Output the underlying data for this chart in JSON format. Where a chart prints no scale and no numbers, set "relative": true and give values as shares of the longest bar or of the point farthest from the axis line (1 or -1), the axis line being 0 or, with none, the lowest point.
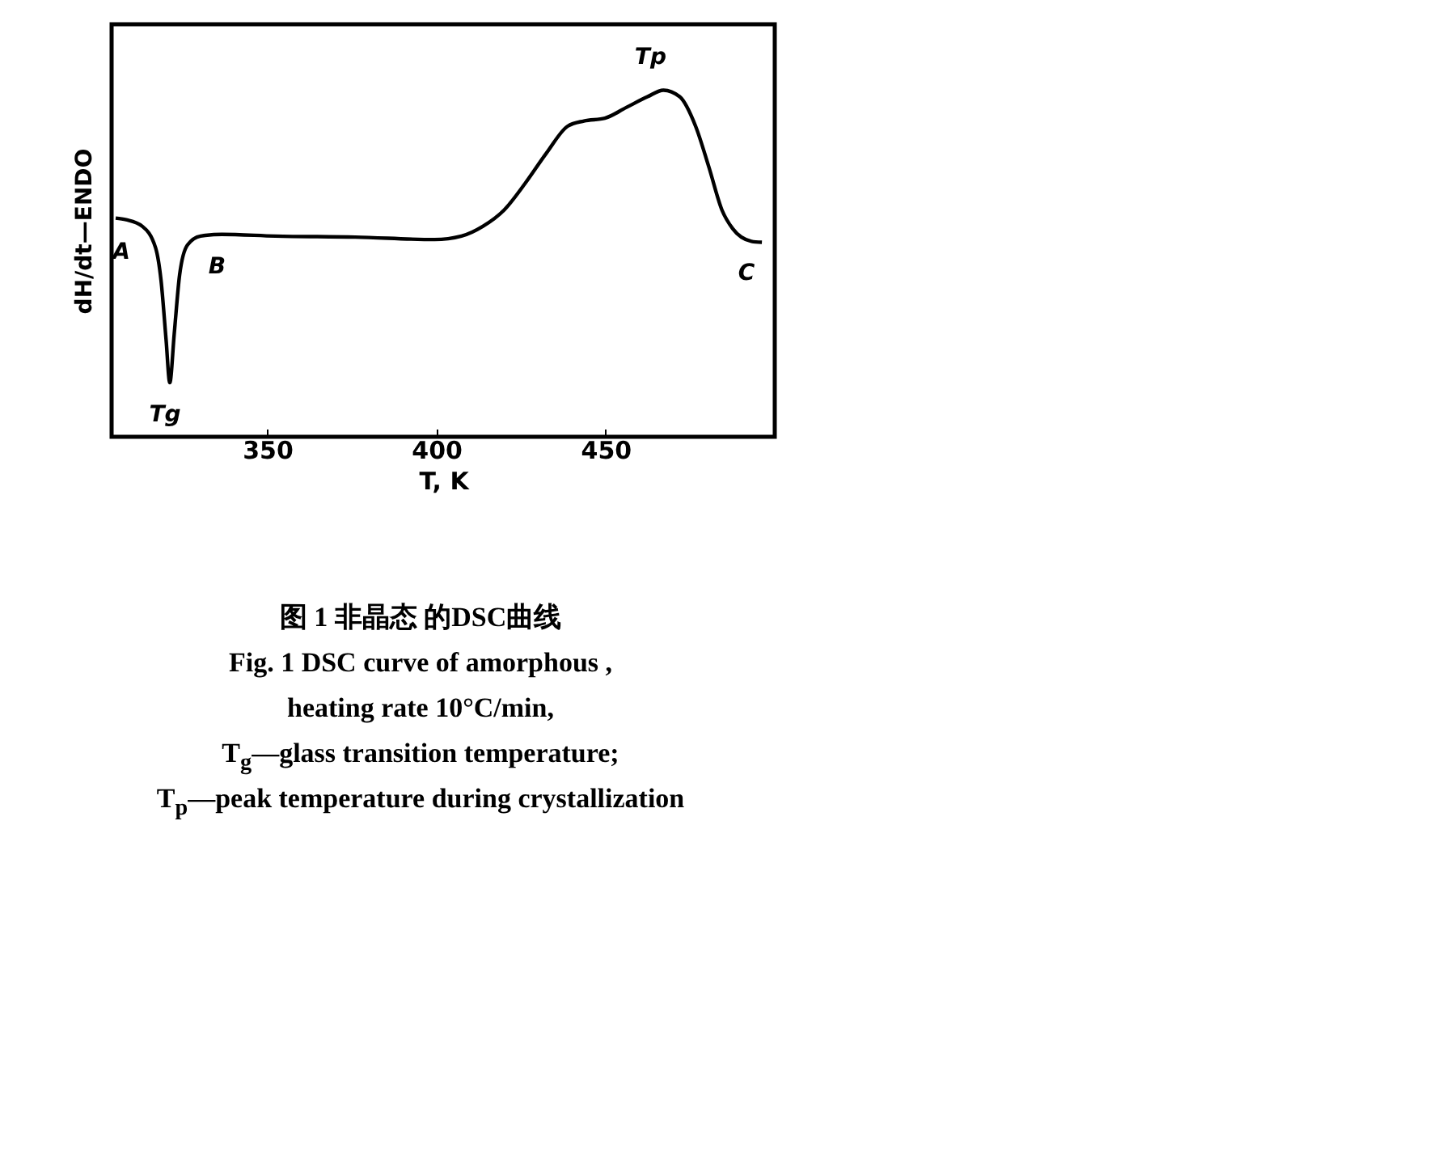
{
  "chart_data": {
    "type": "line",
    "title": "图 1  非晶态  的DSC曲线",
    "subtitle": "Fig. 1  DSC curve of amorphous ,",
    "xlabel": "T, K",
    "ylabel": "dH/dt—ENDO",
    "relative": true,
    "x": [
      305.2,
      308.3,
      313.1,
      317,
      318.6,
      320.1,
      321.2,
      322.5,
      324.1,
      326.4,
      330.3,
      336.6,
      352.4,
      376,
      399.5,
      407.4,
      413.7,
      420,
      426.3,
      432.5,
      438.8,
      443.6,
      449.8,
      456.1,
      462.4,
      467.1,
      471.9,
      476.6,
      480.5,
      484.4,
      487.6,
      493.1,
      496.2
    ],
    "values": [
      0.631,
      0.626,
      0.607,
      0.545,
      0.452,
      0.28,
      0.156,
      0.296,
      0.467,
      0.553,
      0.579,
      0.584,
      0.579,
      0.576,
      0.569,
      0.579,
      0.607,
      0.654,
      0.732,
      0.818,
      0.896,
      0.911,
      0.919,
      0.95,
      0.981,
      1,
      0.981,
      0.896,
      0.779,
      0.654,
      0.6,
      0.564,
      0.561
    ],
    "color": "#000000",
    "xlim": [
      304,
      500
    ],
    "xticks": [
      350,
      400,
      450
    ],
    "grid": false,
    "annotations": [
      {
        "text": "A",
        "x": 308.3,
        "y": 0.626
      },
      {
        "text": "Tg",
        "x": 321.2,
        "y": 0.156
      },
      {
        "text": "B",
        "x": 336.6,
        "y": 0.584
      },
      {
        "text": "Tp",
        "x": 467.1,
        "y": 1
      },
      {
        "text": "C",
        "x": 493.1,
        "y": 0.564
      },
      "heating rate 10°C/min,",
      "T$_{g}$—glass transition temperature;",
      "T$_{p}$—peak temperature during crystallization"
    ]
  }
}
